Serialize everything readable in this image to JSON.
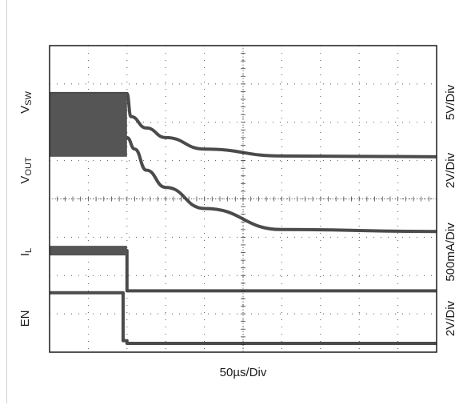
{
  "chart_data": {
    "type": "line",
    "xlabel": "50µs/Div",
    "grid": true,
    "x_divisions": 10,
    "y_divisions": 8,
    "x_unit": "µs",
    "x_per_div": 50,
    "channels": [
      {
        "name_main": "V",
        "name_sub": "SW",
        "scale": "5V/Div"
      },
      {
        "name_main": "V",
        "name_sub": "OUT",
        "scale": "2V/Div"
      },
      {
        "name_main": "I",
        "name_sub": "L",
        "scale": "500mA/Div"
      },
      {
        "name_main": "EN",
        "name_sub": "",
        "scale": "2V/Div"
      }
    ],
    "traces": [
      {
        "channel": "V_SW",
        "x": [
          0,
          100,
          105,
          125,
          150,
          200,
          300,
          500
        ],
        "y": [
          6.75,
          6.75,
          6.15,
          5.85,
          5.6,
          5.3,
          5.12,
          5.1
        ]
      },
      {
        "channel": "V_OUT",
        "x": [
          0,
          100,
          110,
          125,
          150,
          200,
          300,
          500
        ],
        "y": [
          5.6,
          5.6,
          5.3,
          4.75,
          4.3,
          3.75,
          3.2,
          3.15
        ]
      },
      {
        "channel": "I_L",
        "x": [
          0,
          100,
          100,
          500
        ],
        "y": [
          2.65,
          2.65,
          1.6,
          1.6
        ]
      },
      {
        "channel": "EN",
        "x": [
          0,
          95,
          95,
          100,
          100,
          500
        ],
        "y": [
          1.55,
          1.55,
          0.3,
          0.3,
          0.23,
          0.23
        ]
      }
    ]
  }
}
